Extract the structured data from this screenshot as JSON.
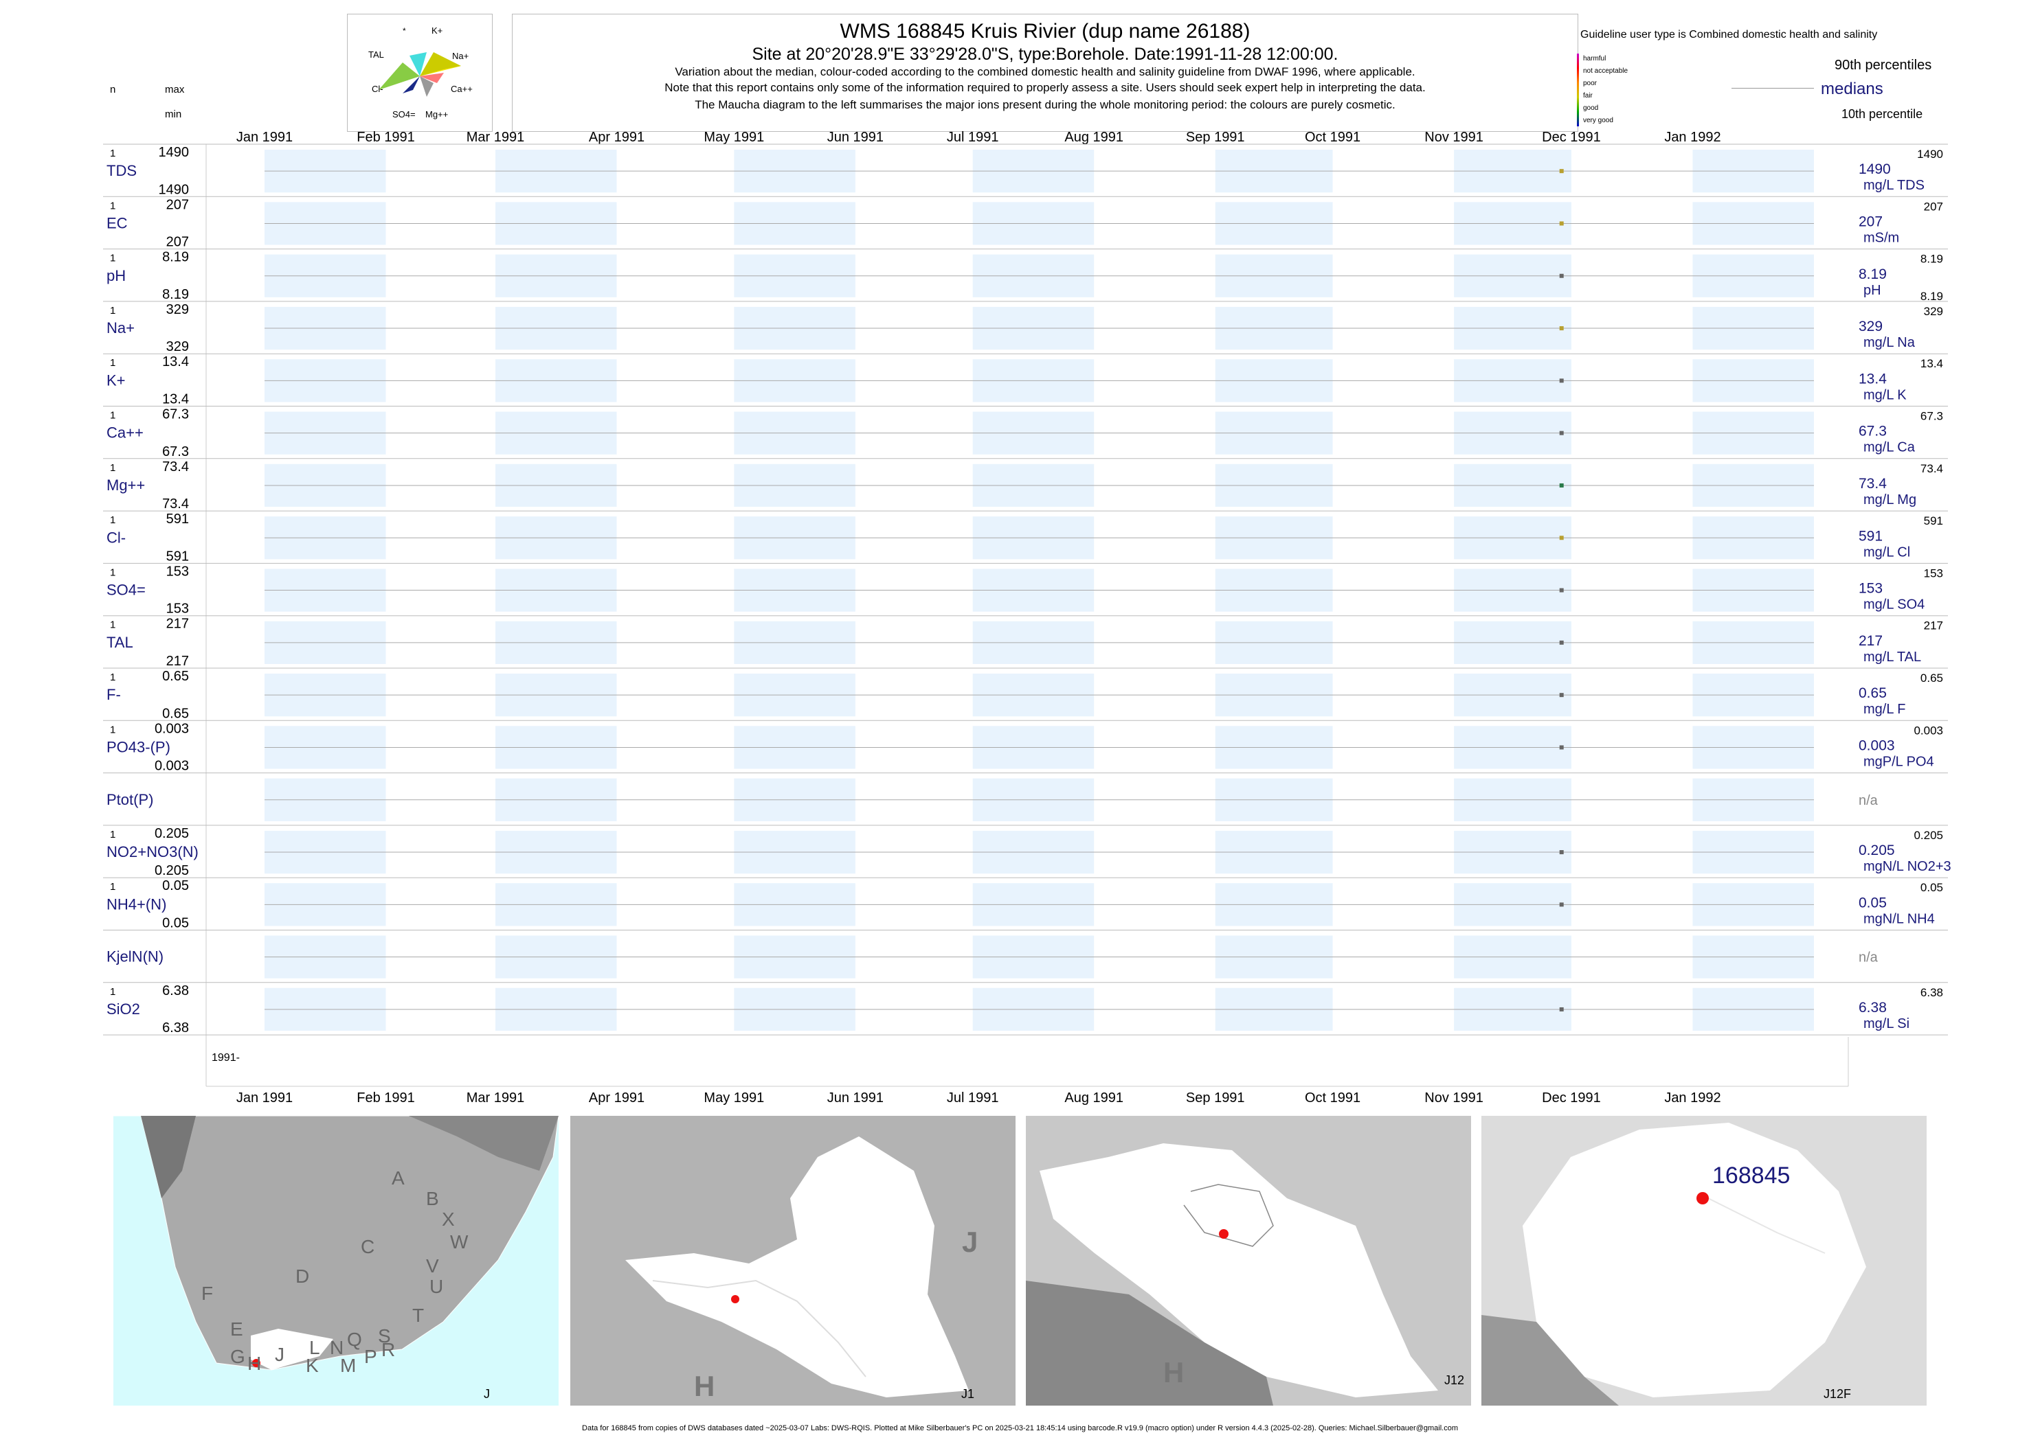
{
  "header": {
    "title": "WMS 168845  Kruis Rivier (dup name 26188)",
    "subtitle": "Site at 20°20'28.9\"E 33°29'28.0\"S, type:Borehole. Date:1991-11-28 12:00:00.",
    "note1": "Variation about the median,  colour-coded according to the combined domestic health and salinity guideline from DWAF 1996, where applicable.",
    "note2": "Note that this report contains only some of the information required to properly assess a site. Users should seek expert help in interpreting the data.",
    "note3": "The Maucha diagram to the left summarises the major ions present during the whole monitoring period: the colours are purely cosmetic.",
    "col_n": "n",
    "col_max": "max",
    "col_min": "min"
  },
  "maucha": {
    "labels": [
      "*",
      "K+",
      "TAL",
      "Na+",
      "Cl-",
      "Ca++",
      "SO4=",
      "Mg++"
    ]
  },
  "legend": {
    "guideline_title": "Guideline user type is Combined domestic health and salinity",
    "classes": [
      "harmful",
      "not acceptable",
      "poor",
      "fair",
      "good",
      "very good"
    ],
    "class_colors": [
      "#cc00cc",
      "#ff0000",
      "#ff8800",
      "#cccc00",
      "#00aa00",
      "#0000cc"
    ],
    "p90": "90th percentiles",
    "medians": "medians",
    "p10": "10th percentile"
  },
  "chart_data": {
    "type": "scatter",
    "x_ticks": [
      "Jan 1991",
      "Feb 1991",
      "Mar 1991",
      "Apr 1991",
      "May 1991",
      "Jun 1991",
      "Jul 1991",
      "Aug 1991",
      "Sep 1991",
      "Oct 1991",
      "Nov 1991",
      "Dec 1991",
      "Jan 1992"
    ],
    "sample_date": "1991-11-28",
    "year_label": "1991-",
    "series": [
      {
        "name": "TDS",
        "n": "1",
        "max": "1490",
        "min": "1490",
        "median": "1490",
        "unit": "mg/L TDS",
        "p90": "1490",
        "color": "#b8a030"
      },
      {
        "name": "EC",
        "n": "1",
        "max": "207",
        "min": "207",
        "median": "207",
        "unit": "mS/m",
        "p90": "207",
        "color": "#b8a030"
      },
      {
        "name": "pH",
        "n": "1",
        "max": "8.19",
        "min": "8.19",
        "median": "8.19",
        "unit": "pH",
        "p90": "8.19",
        "p10": "8.19",
        "color": "#666666"
      },
      {
        "name": "Na+",
        "n": "1",
        "max": "329",
        "min": "329",
        "median": "329",
        "unit": "mg/L Na",
        "p90": "329",
        "color": "#b8a030"
      },
      {
        "name": "K+",
        "n": "1",
        "max": "13.4",
        "min": "13.4",
        "median": "13.4",
        "unit": "mg/L K",
        "p90": "13.4",
        "color": "#666666"
      },
      {
        "name": "Ca++",
        "n": "1",
        "max": "67.3",
        "min": "67.3",
        "median": "67.3",
        "unit": "mg/L Ca",
        "p90": "67.3",
        "color": "#666666"
      },
      {
        "name": "Mg++",
        "n": "1",
        "max": "73.4",
        "min": "73.4",
        "median": "73.4",
        "unit": "mg/L Mg",
        "p90": "73.4",
        "color": "#2a7a4a"
      },
      {
        "name": "Cl-",
        "n": "1",
        "max": "591",
        "min": "591",
        "median": "591",
        "unit": "mg/L Cl",
        "p90": "591",
        "color": "#b8a030"
      },
      {
        "name": "SO4=",
        "n": "1",
        "max": "153",
        "min": "153",
        "median": "153",
        "unit": "mg/L SO4",
        "p90": "153",
        "color": "#666666"
      },
      {
        "name": "TAL",
        "n": "1",
        "max": "217",
        "min": "217",
        "median": "217",
        "unit": "mg/L TAL",
        "p90": "217",
        "color": "#666666"
      },
      {
        "name": "F-",
        "n": "1",
        "max": "0.65",
        "min": "0.65",
        "median": "0.65",
        "unit": "mg/L F",
        "p90": "0.65",
        "color": "#666666"
      },
      {
        "name": "PO43-(P)",
        "n": "1",
        "max": "0.003",
        "min": "0.003",
        "median": "0.003",
        "unit": "mgP/L PO4",
        "p90": "0.003",
        "color": "#666666"
      },
      {
        "name": "Ptot(P)",
        "n": "",
        "max": "",
        "min": "",
        "median": "n/a",
        "unit": "",
        "p90": "",
        "color": ""
      },
      {
        "name": "NO2+NO3(N)",
        "n": "1",
        "max": "0.205",
        "min": "0.205",
        "median": "0.205",
        "unit": "mgN/L NO2+3",
        "p90": "0.205",
        "color": "#666666"
      },
      {
        "name": "NH4+(N)",
        "n": "1",
        "max": "0.05",
        "min": "0.05",
        "median": "0.05",
        "unit": "mgN/L NH4",
        "p90": "0.05",
        "color": "#666666"
      },
      {
        "name": "KjelN(N)",
        "n": "",
        "max": "",
        "min": "",
        "median": "n/a",
        "unit": "",
        "p90": "",
        "color": ""
      },
      {
        "name": "SiO2",
        "n": "1",
        "max": "6.38",
        "min": "6.38",
        "median": "6.38",
        "unit": "mg/L Si",
        "p90": "6.38",
        "color": "#666666"
      }
    ]
  },
  "maps": {
    "map1_letters": [
      "A",
      "B",
      "X",
      "W",
      "C",
      "V",
      "U",
      "D",
      "T",
      "F",
      "E",
      "S",
      "R",
      "Q",
      "N",
      "L",
      "M",
      "P",
      "K",
      "J",
      "G",
      "H"
    ],
    "map1_corner": "J",
    "map2_big": [
      "J",
      "H"
    ],
    "map2_corner": "J1",
    "map3_big": "H",
    "map3_corner": "J12",
    "map4_label": "168845",
    "map4_corner": "J12F"
  },
  "footer": "Data for 168845 from copies of DWS databases dated ~2025-03-07 Labs: DWS-RQIS. Plotted at Mike Silberbauer's PC on 2025-03-21 18:45:14 using barcode.R v19.9 (macro option) under R version 4.4.3 (2025-02-28). Queries: Michael.Silberbauer@gmail.com"
}
